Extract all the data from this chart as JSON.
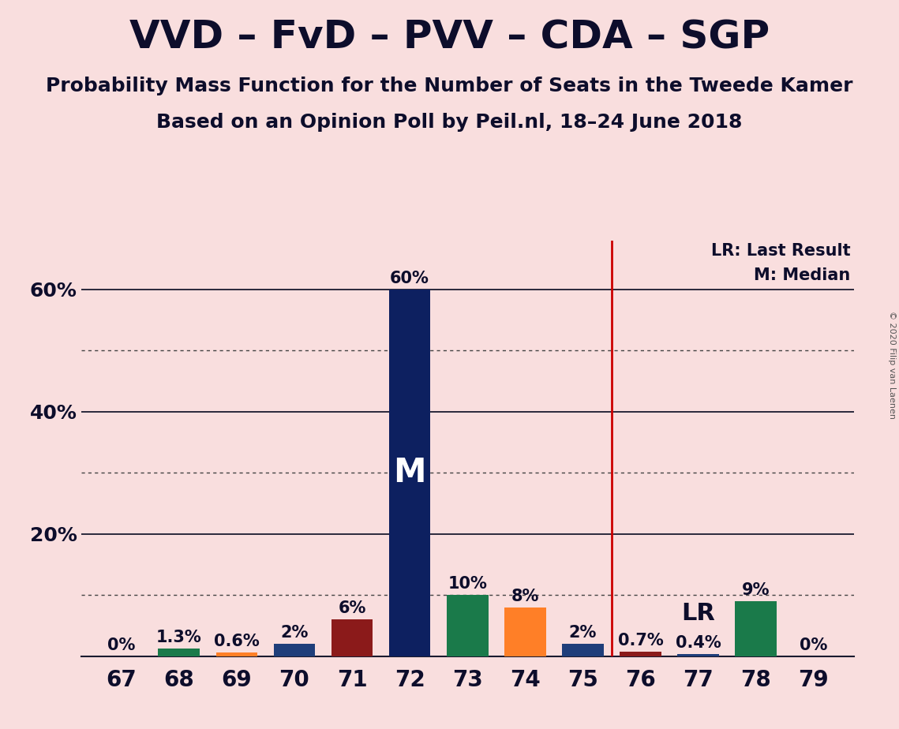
{
  "title": "VVD – FvD – PVV – CDA – SGP",
  "subtitle1": "Probability Mass Function for the Number of Seats in the Tweede Kamer",
  "subtitle2": "Based on an Opinion Poll by Peil.nl, 18–24 June 2018",
  "copyright": "© 2020 Filip van Laenen",
  "background_color": "#f9dede",
  "seats": [
    67,
    68,
    69,
    70,
    71,
    72,
    73,
    74,
    75,
    76,
    77,
    78,
    79
  ],
  "probabilities": [
    0.0,
    1.3,
    0.6,
    2.0,
    6.0,
    60.0,
    10.0,
    8.0,
    2.0,
    0.7,
    0.4,
    9.0,
    0.0
  ],
  "bar_colors": [
    "#1a7a4a",
    "#1a7a4a",
    "#ff7f27",
    "#1f3e7a",
    "#8b1a1a",
    "#0d2060",
    "#1a7a4a",
    "#ff7f27",
    "#1f3e7a",
    "#8b1a1a",
    "#1f3e7a",
    "#1a7a4a",
    "#1a7a4a"
  ],
  "median_seat": 72,
  "lr_seat": 75.5,
  "median_label": "M",
  "lr_label": "LR",
  "median_label_color": "#ffffff",
  "lr_line_color": "#cc0000",
  "title_color": "#0d0d2b",
  "bar_label_fontsize": 15,
  "title_fontsize": 36,
  "subtitle_fontsize": 18,
  "axis_tick_fontsize": 20,
  "ytick_fontsize": 18,
  "ylim": [
    0,
    68
  ],
  "solid_gridlines": [
    20.0,
    40.0,
    60.0
  ],
  "dotted_gridlines": [
    10.0,
    30.0,
    50.0
  ],
  "bar_width": 0.72
}
